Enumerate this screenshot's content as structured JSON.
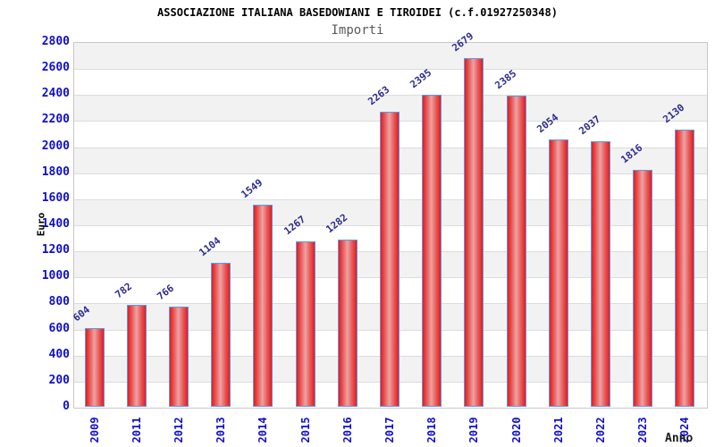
{
  "page": {
    "title": "ASSOCIAZIONE ITALIANA BASEDOWIANI E TIROIDEI (c.f.01927250348)",
    "subtitle": "Importi"
  },
  "axes": {
    "y_label": "Euro",
    "x_label": "Anno"
  },
  "chart_data": {
    "type": "bar",
    "title": "ASSOCIAZIONE ITALIANA BASEDOWIANI E TIROIDEI (c.f.01927250348)",
    "subtitle": "Importi",
    "xlabel": "Anno",
    "ylabel": "Euro",
    "categories": [
      "2009",
      "2011",
      "2012",
      "2013",
      "2014",
      "2015",
      "2016",
      "2017",
      "2018",
      "2019",
      "2020",
      "2021",
      "2022",
      "2023",
      "2024"
    ],
    "values": [
      604,
      782,
      766,
      1104,
      1549,
      1267,
      1282,
      2263,
      2395,
      2679,
      2385,
      2054,
      2037,
      1816,
      2130
    ],
    "ylim": [
      0,
      2800
    ],
    "ytick_step": 200,
    "grid": true,
    "legend_position": "none",
    "bar_value_labels_shown": true,
    "bar_value_labels_rotated": true,
    "x_tick_labels_rotated": true
  },
  "colors": {
    "tick_label": "#0f0fcd",
    "bar_value_label": "#2b2b8f",
    "bar_border": "#5f96e8",
    "bar_edge_red": "#e31c1c",
    "bar_mid_red": "#e85555",
    "bar_highlight": "#eda3a3",
    "band_gray": "#f2f2f2",
    "band_white": "#ffffff",
    "gridline": "#dcdcdc",
    "plot_border": "#c8c8c8",
    "title_text": "#000000",
    "subtitle_text": "#5a5a5a",
    "axis_title_text": "#000000"
  }
}
